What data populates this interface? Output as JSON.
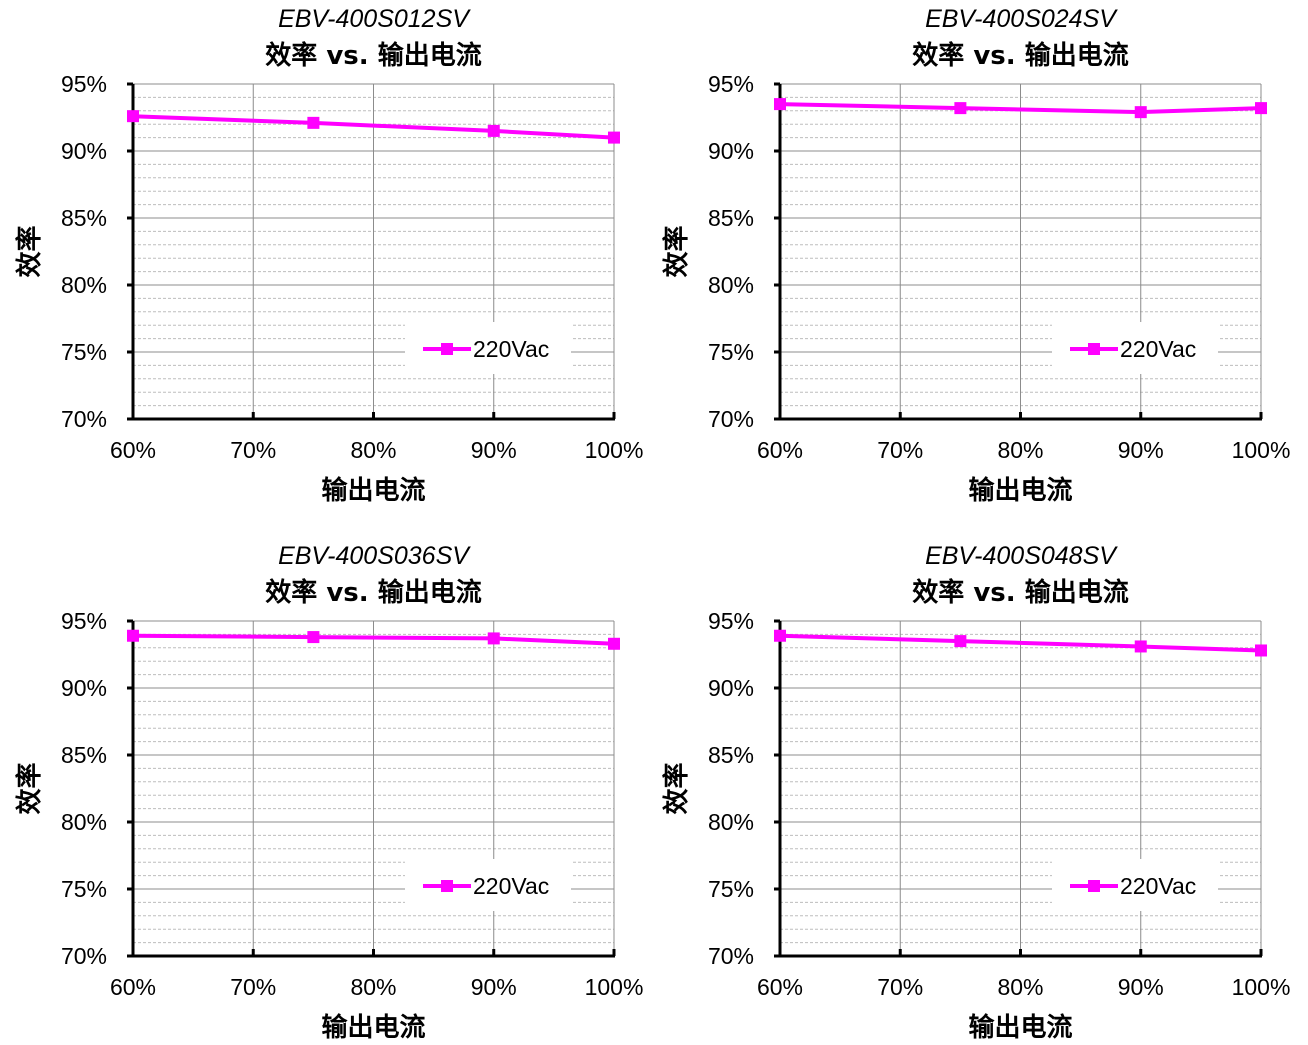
{
  "chart_data": [
    {
      "type": "line",
      "subtitle": "EBV-400S012SV",
      "title": "效率 vs. 输出电流",
      "xlabel": "输出电流",
      "ylabel": "效率",
      "xlim": [
        60,
        100
      ],
      "ylim": [
        70,
        95
      ],
      "xticks": [
        "60%",
        "70%",
        "80%",
        "90%",
        "100%"
      ],
      "yticks": [
        "95%",
        "90%",
        "85%",
        "80%",
        "75%",
        "70%"
      ],
      "grid": true,
      "legend_position": "bottom-right",
      "series": [
        {
          "name": "220Vac",
          "color": "#ff00ff",
          "marker": "square",
          "x": [
            60,
            75,
            90,
            100
          ],
          "y": [
            92.6,
            92.1,
            91.5,
            91.0
          ]
        }
      ]
    },
    {
      "type": "line",
      "subtitle": "EBV-400S024SV",
      "title": "效率 vs. 输出电流",
      "xlabel": "输出电流",
      "ylabel": "效率",
      "xlim": [
        60,
        100
      ],
      "ylim": [
        70,
        95
      ],
      "xticks": [
        "60%",
        "70%",
        "80%",
        "90%",
        "100%"
      ],
      "yticks": [
        "95%",
        "90%",
        "85%",
        "80%",
        "75%",
        "70%"
      ],
      "grid": true,
      "legend_position": "bottom-right",
      "series": [
        {
          "name": "220Vac",
          "color": "#ff00ff",
          "marker": "square",
          "x": [
            60,
            75,
            90,
            100
          ],
          "y": [
            93.5,
            93.2,
            92.9,
            93.2
          ]
        }
      ]
    },
    {
      "type": "line",
      "subtitle": "EBV-400S036SV",
      "title": "效率 vs. 输出电流",
      "xlabel": "输出电流",
      "ylabel": "效率",
      "xlim": [
        60,
        100
      ],
      "ylim": [
        70,
        95
      ],
      "xticks": [
        "60%",
        "70%",
        "80%",
        "90%",
        "100%"
      ],
      "yticks": [
        "95%",
        "90%",
        "85%",
        "80%",
        "75%",
        "70%"
      ],
      "grid": true,
      "legend_position": "bottom-right",
      "series": [
        {
          "name": "220Vac",
          "color": "#ff00ff",
          "marker": "square",
          "x": [
            60,
            75,
            90,
            100
          ],
          "y": [
            93.9,
            93.8,
            93.7,
            93.3
          ]
        }
      ]
    },
    {
      "type": "line",
      "subtitle": "EBV-400S048SV",
      "title": "效率 vs. 输出电流",
      "xlabel": "输出电流",
      "ylabel": "效率",
      "xlim": [
        60,
        100
      ],
      "ylim": [
        70,
        95
      ],
      "xticks": [
        "60%",
        "70%",
        "80%",
        "90%",
        "100%"
      ],
      "yticks": [
        "95%",
        "90%",
        "85%",
        "80%",
        "75%",
        "70%"
      ],
      "grid": true,
      "legend_position": "bottom-right",
      "series": [
        {
          "name": "220Vac",
          "color": "#ff00ff",
          "marker": "square",
          "x": [
            60,
            75,
            90,
            100
          ],
          "y": [
            93.9,
            93.5,
            93.1,
            92.8
          ]
        }
      ]
    }
  ]
}
